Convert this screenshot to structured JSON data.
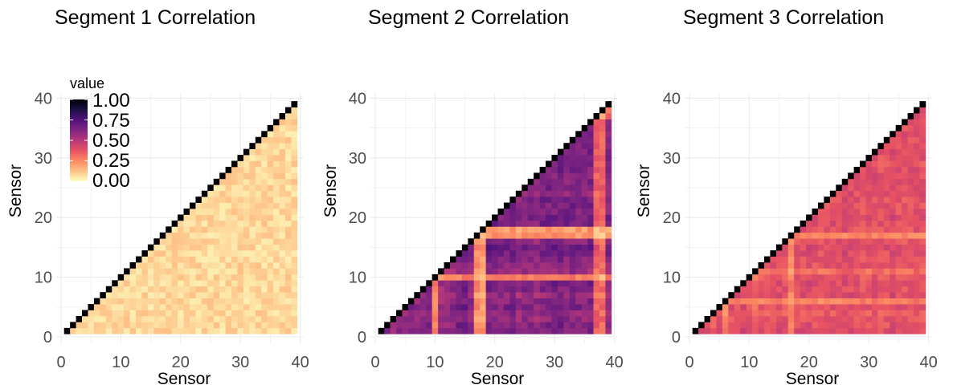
{
  "chart_data": [
    {
      "type": "heatmap",
      "title": "Segment 1 Correlation",
      "xlabel": "Sensor",
      "ylabel": "Sensor",
      "x_ticks": [
        0,
        10,
        20,
        30,
        40
      ],
      "y_ticks": [
        0,
        10,
        20,
        30,
        40
      ],
      "xlim": [
        0,
        40
      ],
      "ylim": [
        0,
        40
      ],
      "n_sensors": 39,
      "diagonal_value": 1.0,
      "mask": "upper-left triangle blank; lower-right triangle (i < j) filled",
      "base_level": 0.08,
      "variation": 0.05,
      "sensor_strength": [
        0,
        0,
        0,
        0,
        0,
        0,
        0,
        0,
        0,
        0,
        0,
        0,
        0,
        0,
        0,
        0,
        0,
        0,
        0,
        0,
        0,
        0,
        0,
        0,
        0,
        0,
        0,
        0,
        0,
        0,
        0,
        0,
        0,
        0,
        0,
        0.25,
        0,
        0,
        0
      ]
    },
    {
      "type": "heatmap",
      "title": "Segment 2 Correlation",
      "xlabel": "Sensor",
      "ylabel": "Sensor",
      "x_ticks": [
        0,
        10,
        20,
        30,
        40
      ],
      "y_ticks": [
        0,
        10,
        20,
        30,
        40
      ],
      "xlim": [
        0,
        40
      ],
      "ylim": [
        0,
        40
      ],
      "n_sensors": 39,
      "diagonal_value": 1.0,
      "mask": "upper-left triangle blank; lower-right triangle (i < j) filled",
      "base_level": 0.05,
      "variation": 0.06,
      "sensor_strength": [
        0.58,
        0.58,
        0.52,
        0.5,
        0.6,
        0.55,
        0.48,
        0.56,
        0.6,
        0.08,
        0.45,
        0.5,
        0.55,
        0.62,
        0.68,
        0.55,
        0.06,
        0.05,
        0.62,
        0.62,
        0.58,
        0.6,
        0.62,
        0.5,
        0.58,
        0.55,
        0.52,
        0.58,
        0.6,
        0.62,
        0.64,
        0.58,
        0.62,
        0.58,
        0.56,
        0.6,
        0.16,
        0.14,
        0.55
      ]
    },
    {
      "type": "heatmap",
      "title": "Segment 3 Correlation",
      "xlabel": "Sensor",
      "ylabel": "Sensor",
      "x_ticks": [
        0,
        10,
        20,
        30,
        40
      ],
      "y_ticks": [
        0,
        10,
        20,
        30,
        40
      ],
      "xlim": [
        0,
        40
      ],
      "ylim": [
        0,
        40
      ],
      "n_sensors": 39,
      "diagonal_value": 1.0,
      "mask": "upper-left triangle blank; lower-right triangle (i < j) filled",
      "base_level": 0.08,
      "variation": 0.05,
      "sensor_strength": [
        0.35,
        0.3,
        0.28,
        0.25,
        0.3,
        0.12,
        0.32,
        0.3,
        0.34,
        0.28,
        0.18,
        0.3,
        0.3,
        0.32,
        0.34,
        0.3,
        0.1,
        0.3,
        0.32,
        0.35,
        0.3,
        0.28,
        0.3,
        0.32,
        0.3,
        0.35,
        0.33,
        0.3,
        0.28,
        0.3,
        0.32,
        0.28,
        0.3,
        0.35,
        0.3,
        0.28,
        0.3,
        0.32,
        0.3
      ]
    }
  ],
  "legend": {
    "title": "value",
    "labels": [
      "1.00",
      "0.75",
      "0.50",
      "0.25",
      "0.00"
    ],
    "range": [
      0,
      1
    ],
    "placement": "inside top-left of first panel",
    "colormap": "magma reversed",
    "colormap_stops": [
      "#fcfdbf",
      "#fec287",
      "#fc8961",
      "#e75263",
      "#b73779",
      "#822681",
      "#51127c",
      "#1c1044",
      "#000004"
    ]
  }
}
